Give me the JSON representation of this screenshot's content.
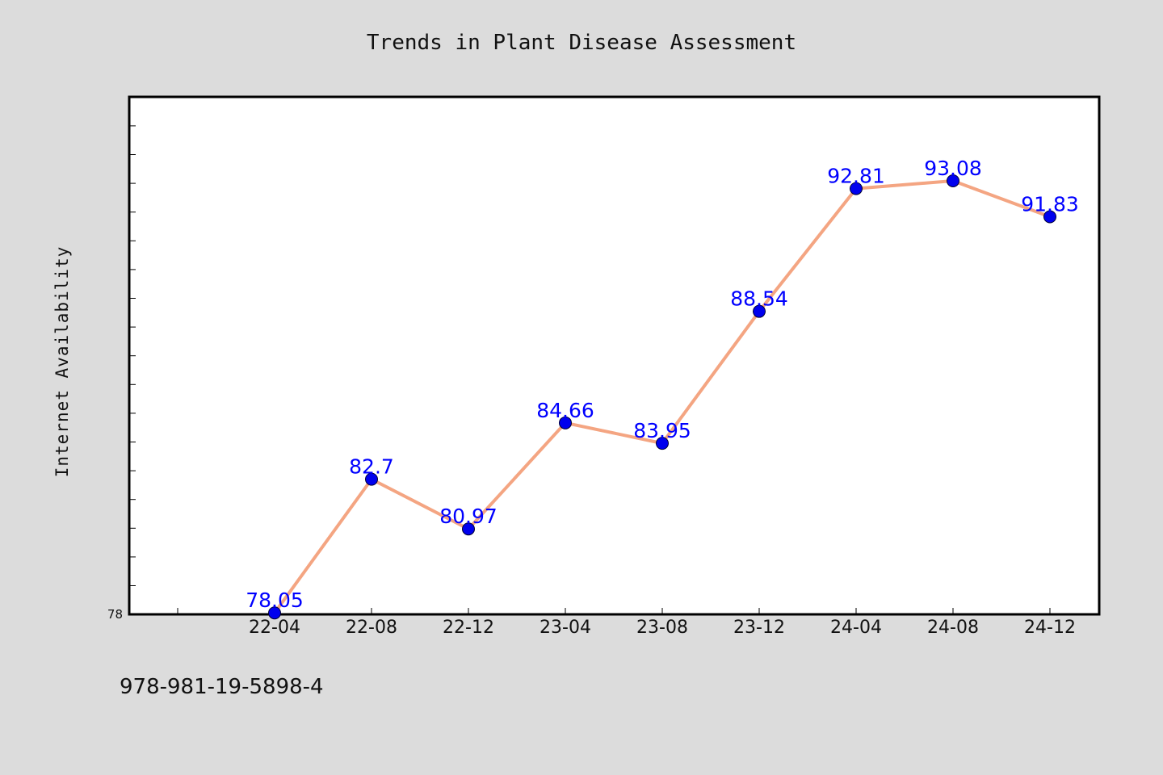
{
  "footnote": "978-981-19-5898-4",
  "chart_data": {
    "type": "line",
    "title": "Trends in Plant Disease Assessment",
    "xlabel": "",
    "ylabel": "Internet Availability",
    "categories": [
      "22-04",
      "22-08",
      "22-12",
      "23-04",
      "23-08",
      "23-12",
      "24-04",
      "24-08",
      "24-12"
    ],
    "series": [
      {
        "values": [
          78.05,
          82.7,
          80.97,
          84.66,
          83.95,
          88.54,
          92.81,
          93.08,
          91.83
        ],
        "data_labels": [
          "78.05",
          "82.7",
          "80.97",
          "84.66",
          "83.95",
          "88.54",
          "92.81",
          "93.08",
          "91.83"
        ]
      }
    ],
    "y_tick_labels": [
      {
        "value": 78,
        "label": "78"
      }
    ],
    "ylim": [
      78,
      96
    ],
    "grid": false,
    "legend": "none",
    "colors": {
      "line": "#f4a582",
      "marker": "#0000ee",
      "data_label": "#0000ff",
      "plot_background": "#ffffff",
      "figure_background": "#dcdcdc"
    }
  }
}
